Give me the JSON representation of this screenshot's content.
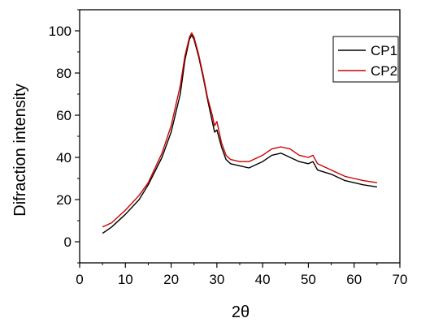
{
  "chart_data": {
    "type": "line",
    "title": "",
    "xlabel": "2θ",
    "ylabel": "Difraction intensity",
    "xlim": [
      0,
      70
    ],
    "ylim": [
      -10,
      110
    ],
    "xticks": [
      0,
      10,
      20,
      30,
      40,
      50,
      60,
      70
    ],
    "yticks": [
      0,
      20,
      40,
      60,
      80,
      100
    ],
    "grid": false,
    "legend_position": "top-right",
    "series": [
      {
        "name": "CP1",
        "color": "#000000",
        "x": [
          5,
          7,
          10,
          13,
          15,
          18,
          20,
          22,
          23,
          24,
          24.5,
          25,
          26,
          27,
          28,
          29,
          29.5,
          30,
          31,
          32,
          33,
          35,
          37,
          40,
          42,
          44,
          46,
          48,
          50,
          51,
          52,
          55,
          58,
          60,
          62,
          65
        ],
        "y": [
          4,
          7,
          13,
          20,
          27,
          40,
          52,
          70,
          86,
          96,
          98,
          96,
          88,
          78,
          67,
          57,
          52,
          53,
          45,
          39,
          37,
          36,
          35,
          38,
          41,
          42,
          40,
          38,
          37,
          38,
          34,
          32,
          29,
          28,
          27,
          26
        ]
      },
      {
        "name": "CP2",
        "color": "#cc0000",
        "x": [
          5,
          7,
          10,
          13,
          15,
          18,
          20,
          22,
          23,
          24,
          24.5,
          25,
          26,
          27,
          28,
          29,
          29.5,
          30,
          31,
          32,
          33,
          35,
          37,
          40,
          42,
          44,
          46,
          48,
          50,
          51,
          52,
          55,
          58,
          60,
          62,
          65
        ],
        "y": [
          7,
          9,
          15,
          22,
          28,
          42,
          55,
          74,
          88,
          97,
          99,
          97,
          89,
          79,
          68,
          60,
          55,
          57,
          47,
          41,
          39,
          38,
          38,
          41,
          44,
          45,
          44,
          41,
          40,
          41,
          37,
          34,
          31,
          30,
          29,
          28
        ]
      }
    ]
  }
}
